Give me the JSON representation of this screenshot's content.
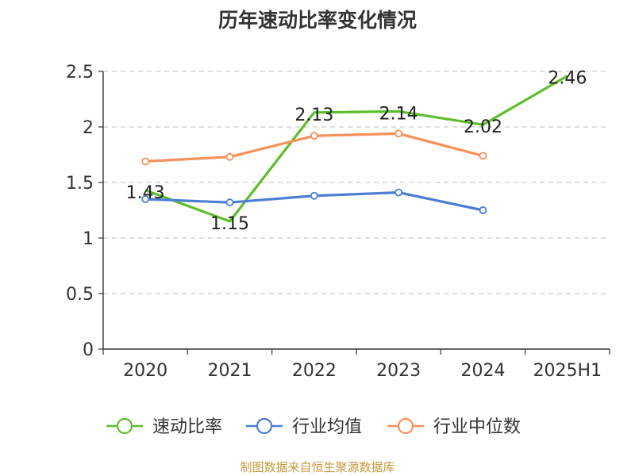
{
  "chart_data": {
    "type": "line",
    "title": "历年速动比率变化情况",
    "categories": [
      "2020",
      "2021",
      "2022",
      "2023",
      "2024",
      "2025H1"
    ],
    "ylim": [
      0,
      2.5
    ],
    "yticks": [
      "0",
      "0.5",
      "1",
      "1.5",
      "2",
      "2.5"
    ],
    "grid": true,
    "legend_position": "bottom",
    "series": [
      {
        "name": "速动比率",
        "color": "#5cbf2a",
        "values": [
          1.43,
          1.15,
          2.13,
          2.14,
          2.02,
          2.46
        ],
        "labels": [
          "1.43",
          "1.15",
          "2.13",
          "2.14",
          "2.02",
          "2.46"
        ],
        "markers": false
      },
      {
        "name": "行业均值",
        "color": "#4a7fd4",
        "values": [
          1.35,
          1.32,
          1.38,
          1.41,
          1.25,
          null
        ],
        "markers": true
      },
      {
        "name": "行业中位数",
        "color": "#f5915a",
        "values": [
          1.69,
          1.73,
          1.92,
          1.94,
          1.74,
          null
        ],
        "markers": true
      }
    ]
  },
  "source": "制图数据来自恒生聚源数据库"
}
